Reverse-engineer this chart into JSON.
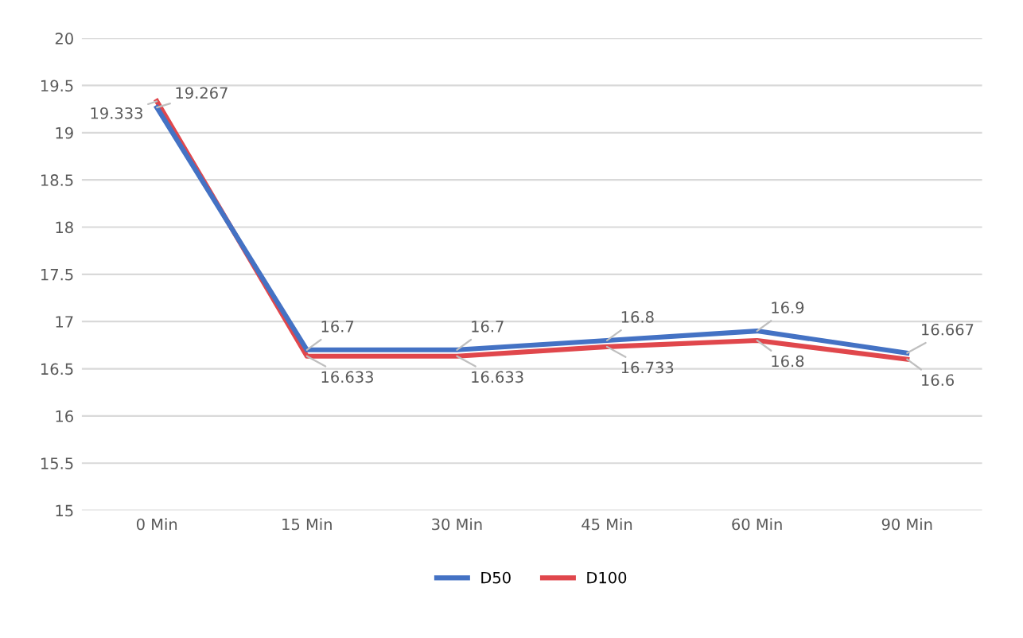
{
  "chart_data": {
    "type": "line",
    "categories": [
      "0 Min",
      "15 Min",
      "30 Min",
      "45 Min",
      "60 Min",
      "90 Min"
    ],
    "series": [
      {
        "name": "D50",
        "color": "#4472c4",
        "values": [
          19.267,
          16.7,
          16.7,
          16.8,
          16.9,
          16.667
        ]
      },
      {
        "name": "D100",
        "color": "#e0474c",
        "values": [
          19.333,
          16.633,
          16.633,
          16.733,
          16.8,
          16.6
        ]
      }
    ],
    "ylim": [
      15,
      20
    ],
    "yticks": [
      15,
      15.5,
      16,
      16.5,
      17,
      17.5,
      18,
      18.5,
      19,
      19.5,
      20
    ],
    "grid": "y",
    "legend": "bottom",
    "data_labels": true,
    "marker": "none",
    "line_style": "solid"
  }
}
